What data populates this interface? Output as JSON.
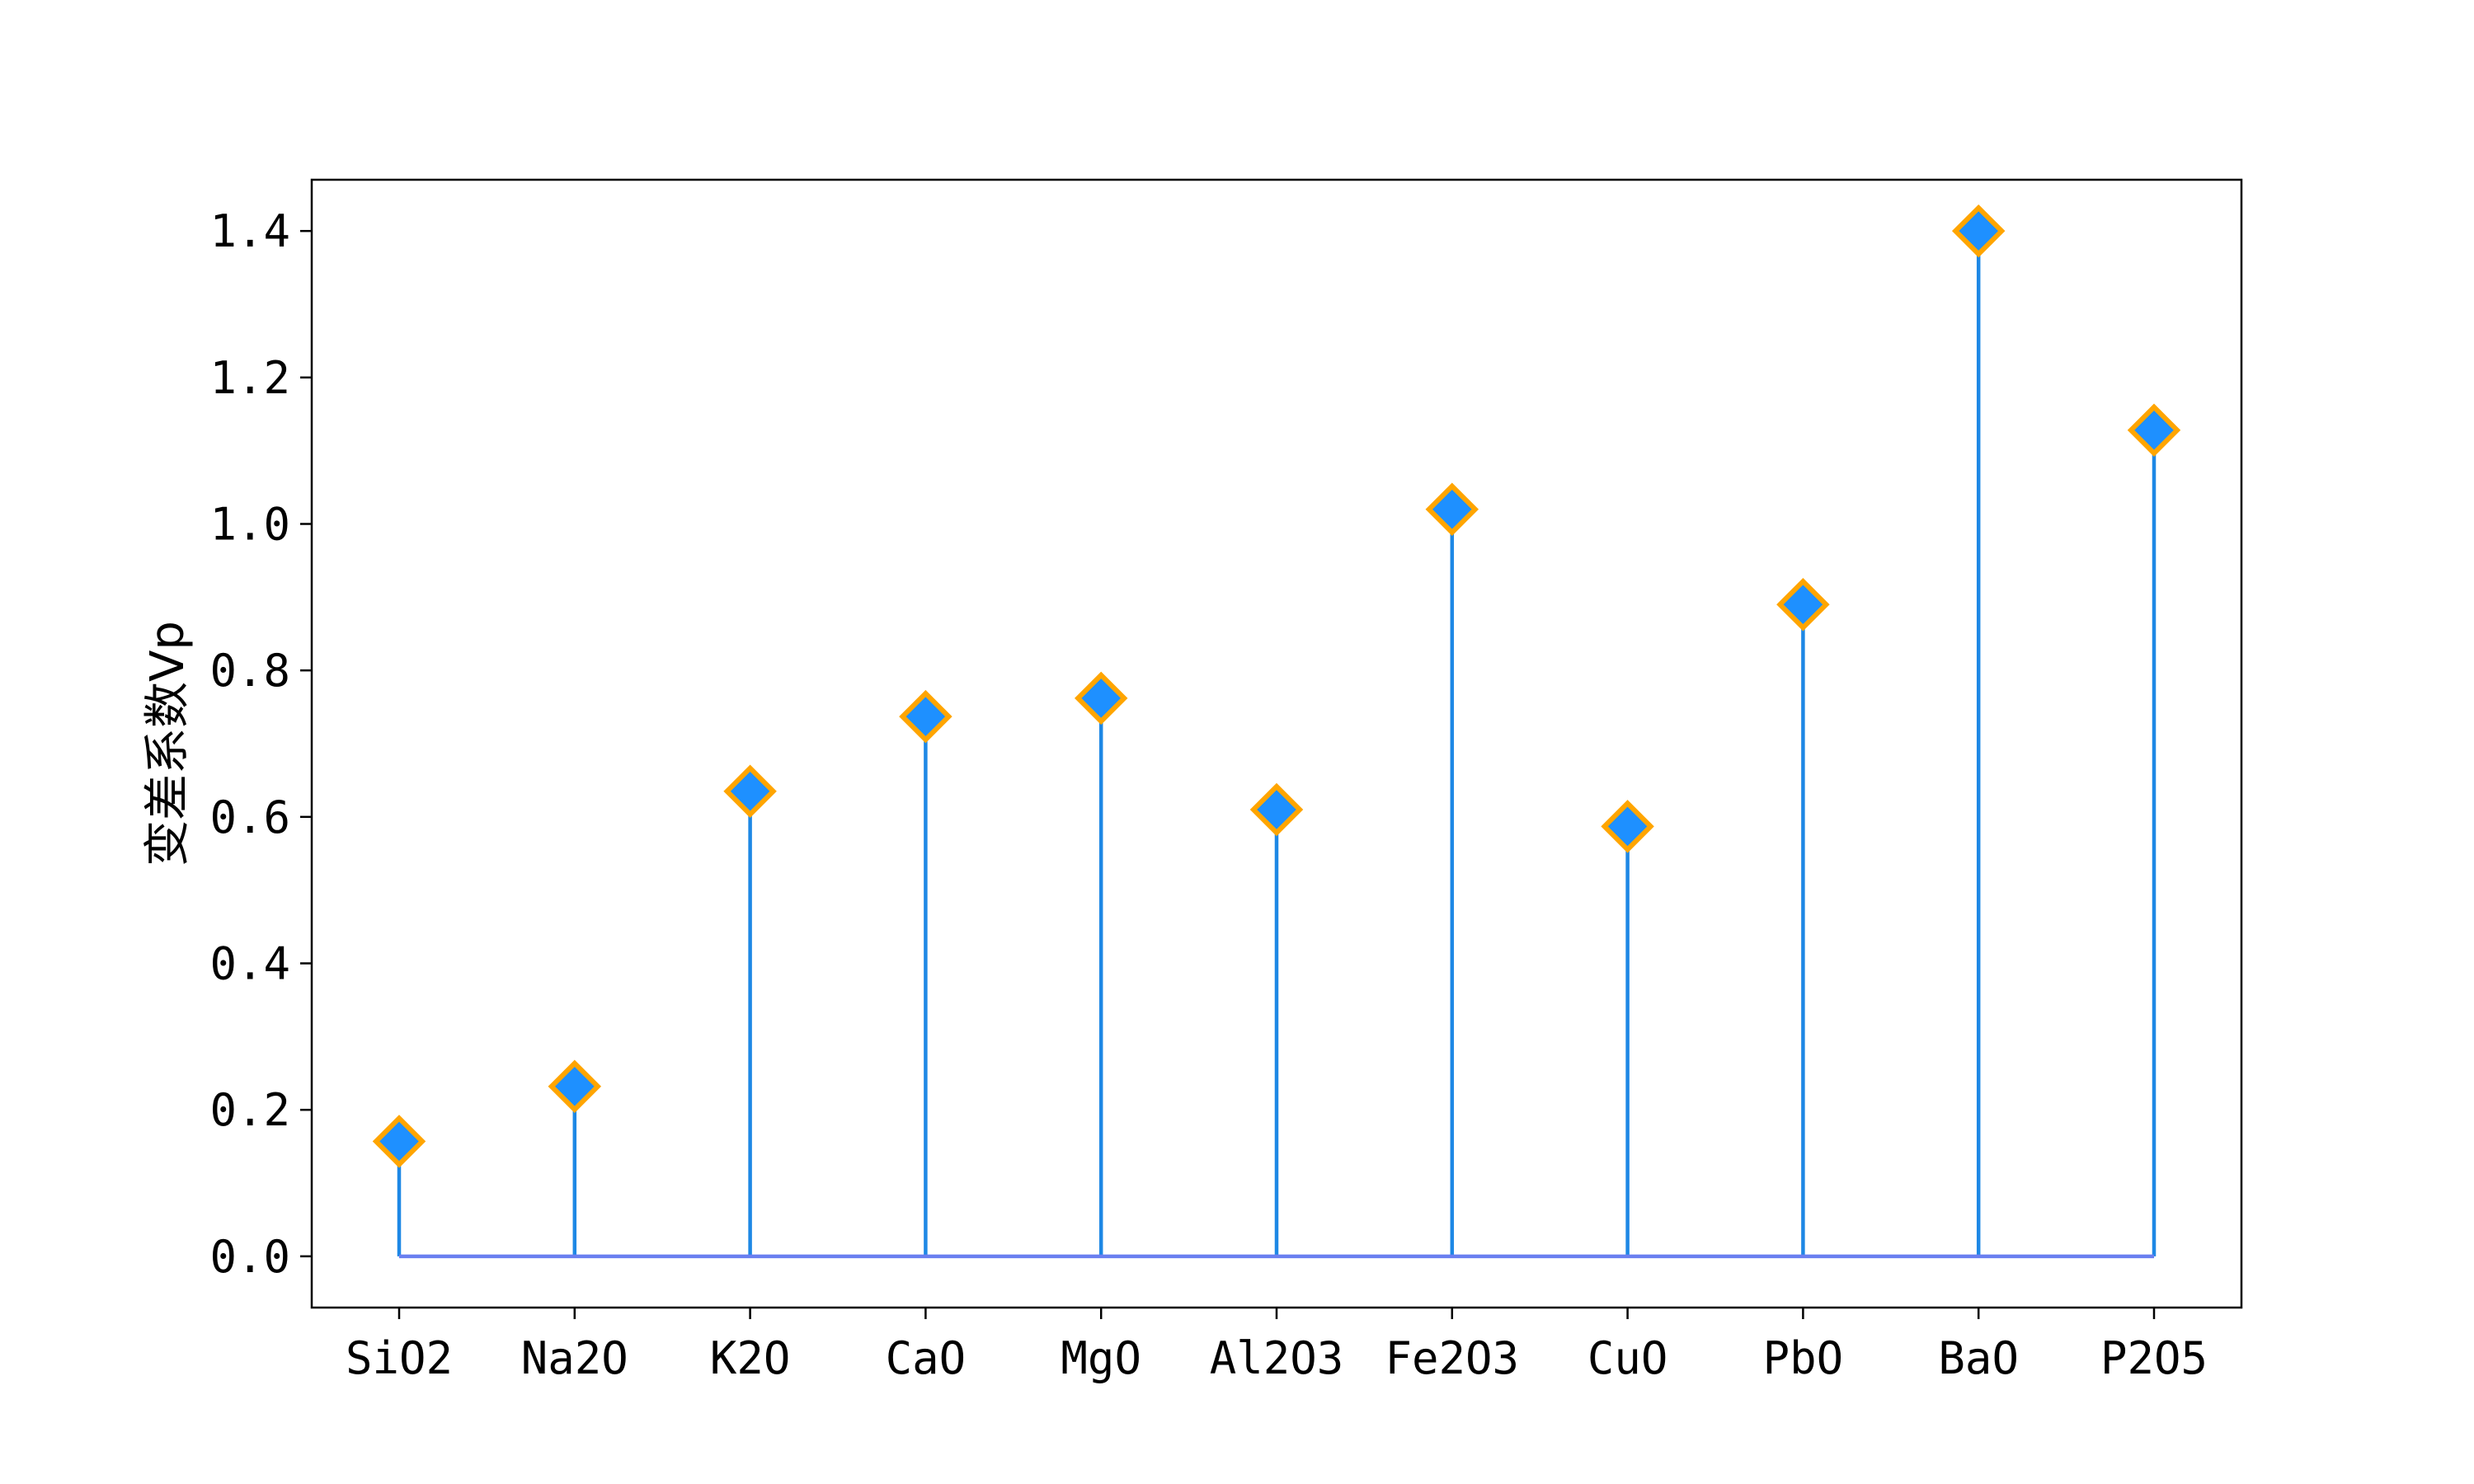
{
  "chart_data": {
    "type": "stem",
    "title": "",
    "xlabel": "",
    "ylabel": "变差系数Vp",
    "categories": [
      "SiO2",
      "Na2O",
      "K2O",
      "CaO",
      "MgO",
      "Al2O3",
      "Fe2O3",
      "CuO",
      "PbO",
      "BaO",
      "P2O5"
    ],
    "values": [
      0.157,
      0.232,
      0.635,
      0.737,
      0.762,
      0.61,
      1.02,
      0.587,
      0.89,
      1.4,
      1.128
    ],
    "ylim": [
      -0.07,
      1.47
    ],
    "yticks": [
      0.0,
      0.2,
      0.4,
      0.6,
      0.8,
      1.0,
      1.2,
      1.4
    ],
    "yticklabels": [
      "0.0",
      "0.2",
      "0.4",
      "0.6",
      "0.8",
      "1.0",
      "1.2",
      "1.4"
    ],
    "grid": false,
    "legend": "none",
    "colors": {
      "stem": "#1e88e5",
      "baseline": "#6a7ff0",
      "marker_fill": "#1e90ff",
      "marker_edge": "#ffa500",
      "axis": "#000000"
    }
  }
}
